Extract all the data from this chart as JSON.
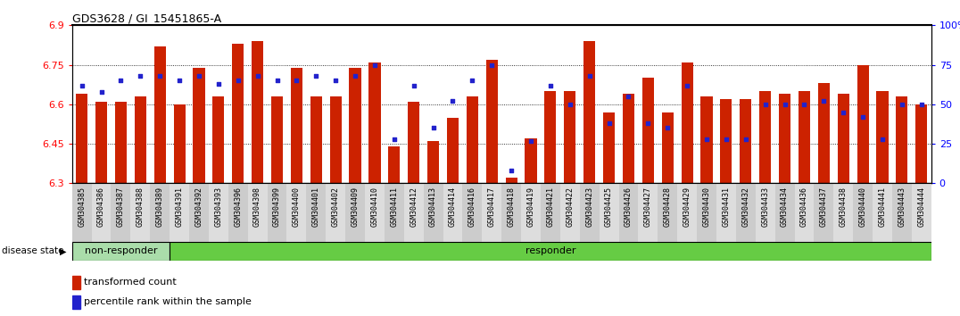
{
  "title": "GDS3628 / GI_15451865-A",
  "ylim_left": [
    6.3,
    6.9
  ],
  "ylim_right": [
    0,
    100
  ],
  "yticks_left": [
    6.3,
    6.45,
    6.6,
    6.75,
    6.9
  ],
  "yticks_right": [
    0,
    25,
    50,
    75,
    100
  ],
  "ytick_labels_left": [
    "6.3",
    "6.45",
    "6.6",
    "6.75",
    "6.9"
  ],
  "ytick_labels_right": [
    "0",
    "25",
    "50",
    "75",
    "100%"
  ],
  "bar_color": "#cc2200",
  "dot_color": "#2222cc",
  "bg_color": "#ffffff",
  "sample_ids": [
    "GSM304385",
    "GSM304386",
    "GSM304387",
    "GSM304388",
    "GSM304389",
    "GSM304391",
    "GSM304392",
    "GSM304393",
    "GSM304396",
    "GSM304398",
    "GSM304399",
    "GSM304400",
    "GSM304401",
    "GSM304402",
    "GSM304409",
    "GSM304410",
    "GSM304411",
    "GSM304412",
    "GSM304413",
    "GSM304414",
    "GSM304416",
    "GSM304417",
    "GSM304418",
    "GSM304419",
    "GSM304421",
    "GSM304422",
    "GSM304423",
    "GSM304425",
    "GSM304426",
    "GSM304427",
    "GSM304428",
    "GSM304429",
    "GSM304430",
    "GSM304431",
    "GSM304432",
    "GSM304433",
    "GSM304434",
    "GSM304436",
    "GSM304437",
    "GSM304438",
    "GSM304440",
    "GSM304441",
    "GSM304443",
    "GSM304444"
  ],
  "bar_values": [
    6.64,
    6.61,
    6.61,
    6.63,
    6.82,
    6.6,
    6.74,
    6.63,
    6.83,
    6.84,
    6.63,
    6.74,
    6.63,
    6.63,
    6.74,
    6.76,
    6.44,
    6.61,
    6.46,
    6.55,
    6.63,
    6.77,
    6.32,
    6.47,
    6.65,
    6.65,
    6.84,
    6.57,
    6.64,
    6.7,
    6.57,
    6.76,
    6.63,
    6.62,
    6.62,
    6.65,
    6.64,
    6.65,
    6.68,
    6.64,
    6.75,
    6.65,
    6.63,
    6.6
  ],
  "percentile_values": [
    62,
    58,
    65,
    68,
    68,
    65,
    68,
    63,
    65,
    68,
    65,
    65,
    68,
    65,
    68,
    75,
    28,
    62,
    35,
    52,
    65,
    75,
    8,
    27,
    62,
    50,
    68,
    38,
    55,
    38,
    35,
    62,
    28,
    28,
    28,
    50,
    50,
    50,
    52,
    45,
    42,
    28,
    50,
    50
  ],
  "non_responder_count": 5,
  "group_labels": [
    "non-responder",
    "responder"
  ],
  "group_colors": [
    "#aaddaa",
    "#66cc44"
  ],
  "legend_items": [
    "transformed count",
    "percentile rank within the sample"
  ],
  "disease_state_label": "disease state"
}
